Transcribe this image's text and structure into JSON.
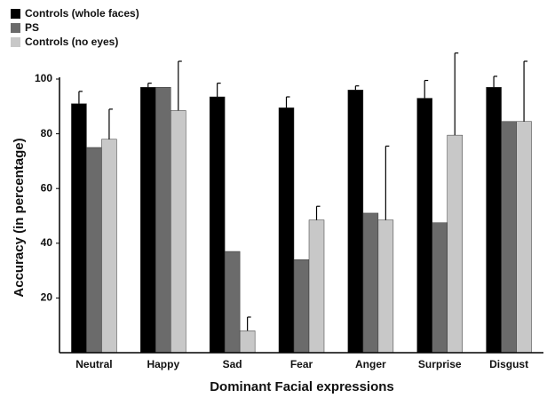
{
  "chart_data": {
    "type": "bar",
    "x_label": "Dominant Facial expressions",
    "y_label": "Accuracy (in percentage)",
    "categories": [
      "Neutral",
      "Happy",
      "Sad",
      "Fear",
      "Anger",
      "Surprise",
      "Disgust"
    ],
    "series": [
      {
        "name": "Controls (whole faces)",
        "color": "#000000",
        "values": [
          91,
          97,
          93.5,
          89.5,
          96,
          93,
          97
        ],
        "errors": [
          4.5,
          1.5,
          5,
          4,
          1.5,
          6.5,
          4
        ]
      },
      {
        "name": "PS",
        "color": "#6b6b6b",
        "values": [
          75,
          97,
          37,
          34,
          51,
          47.5,
          84.5
        ]
      },
      {
        "name": "Controls (no eyes)",
        "color": "#c8c8c8",
        "values": [
          78,
          88.5,
          8,
          48.5,
          48.5,
          79.5,
          84.5
        ],
        "errors": [
          11,
          18,
          5,
          5,
          27,
          30,
          22
        ]
      }
    ],
    "ylim": [
      0,
      100
    ],
    "yticks": [
      20,
      40,
      60,
      80,
      100
    ],
    "legend": "top-left"
  }
}
